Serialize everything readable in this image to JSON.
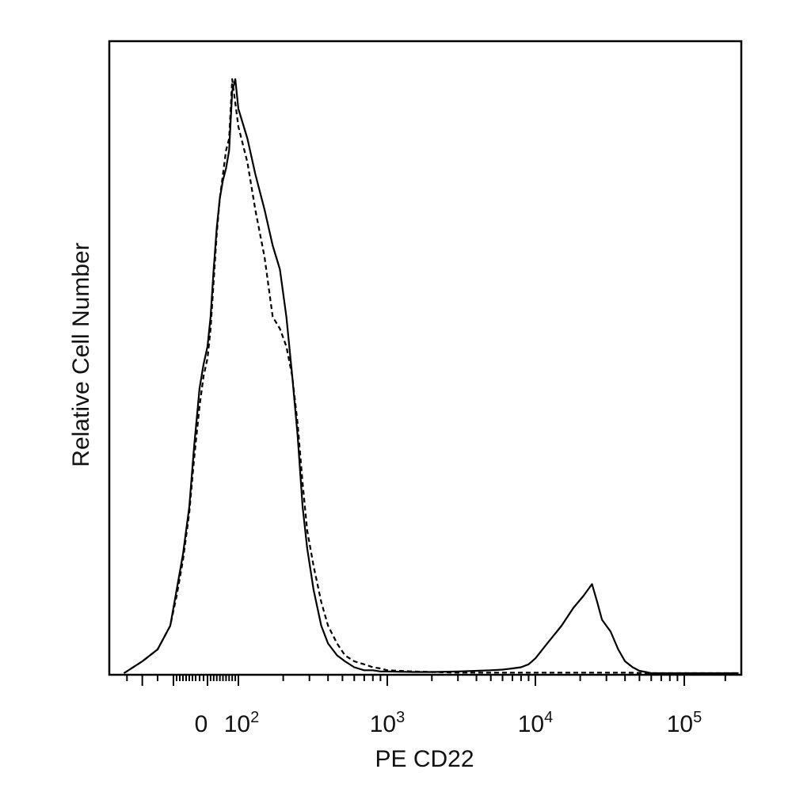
{
  "chart_data": {
    "type": "line",
    "title": "",
    "xlabel": "PE CD22",
    "ylabel": "Relative Cell Number",
    "x_scale": "biexponential",
    "grid": false,
    "legend": "none",
    "xticks": [
      {
        "base": "0",
        "exp": ""
      },
      {
        "base": "10",
        "exp": "2"
      },
      {
        "base": "10",
        "exp": "3"
      },
      {
        "base": "10",
        "exp": "4"
      },
      {
        "base": "10",
        "exp": "5"
      }
    ],
    "series": [
      {
        "style": "solid",
        "x": [
          -260,
          -200,
          -150,
          -110,
          -90,
          -70,
          -50,
          -35,
          -20,
          -10,
          0,
          10,
          20,
          30,
          40,
          50,
          60,
          70,
          80,
          90,
          100,
          115,
          130,
          150,
          170,
          190,
          210,
          230,
          250,
          270,
          290,
          320,
          360,
          400,
          460,
          520,
          600,
          700,
          800,
          900,
          1000,
          1500,
          2000,
          3000,
          4000,
          5000,
          6000,
          7000,
          8000,
          9000,
          10000,
          12000,
          15000,
          18000,
          21000,
          24000,
          26000,
          28000,
          32000,
          36000,
          40000,
          45000,
          50000,
          55000,
          60000,
          100000,
          250000
        ],
        "y": [
          0,
          2,
          4,
          8,
          14,
          20,
          28,
          38,
          48,
          52,
          55,
          60,
          68,
          75,
          80,
          83,
          85,
          88,
          98,
          100,
          95,
          90,
          84,
          78,
          72,
          68,
          60,
          50,
          40,
          28,
          21,
          14,
          8,
          5,
          3,
          2,
          1,
          0.5,
          0.5,
          0.3,
          0.3,
          0.2,
          0.2,
          0.3,
          0.4,
          0.5,
          0.6,
          0.8,
          1.0,
          1.5,
          2.5,
          5,
          8,
          11,
          13,
          15,
          12,
          9,
          7,
          4,
          2,
          1,
          0.4,
          0.2,
          0,
          0,
          0
        ]
      },
      {
        "style": "dashed",
        "x": [
          -260,
          -200,
          -150,
          -110,
          -90,
          -70,
          -50,
          -35,
          -20,
          -10,
          0,
          10,
          20,
          30,
          40,
          50,
          60,
          70,
          80,
          90,
          100,
          115,
          130,
          150,
          170,
          190,
          210,
          230,
          250,
          270,
          290,
          320,
          360,
          400,
          460,
          520,
          600,
          700,
          800,
          900,
          1000,
          1500,
          2000,
          3000,
          5000,
          8000,
          12000,
          20000,
          40000,
          60000,
          100000,
          250000
        ],
        "y": [
          0,
          2,
          4,
          8,
          13,
          19,
          27,
          36,
          45,
          50,
          53,
          58,
          66,
          74,
          80,
          84,
          88,
          90,
          100,
          96,
          92,
          86,
          78,
          70,
          60,
          58,
          55,
          50,
          42,
          32,
          24,
          18,
          12,
          8,
          5,
          3,
          2,
          1.5,
          1,
          0.8,
          0.5,
          0.3,
          0.2,
          0.1,
          0.1,
          0.1,
          0.1,
          0.1,
          0.1,
          0,
          0,
          0
        ]
      }
    ]
  }
}
